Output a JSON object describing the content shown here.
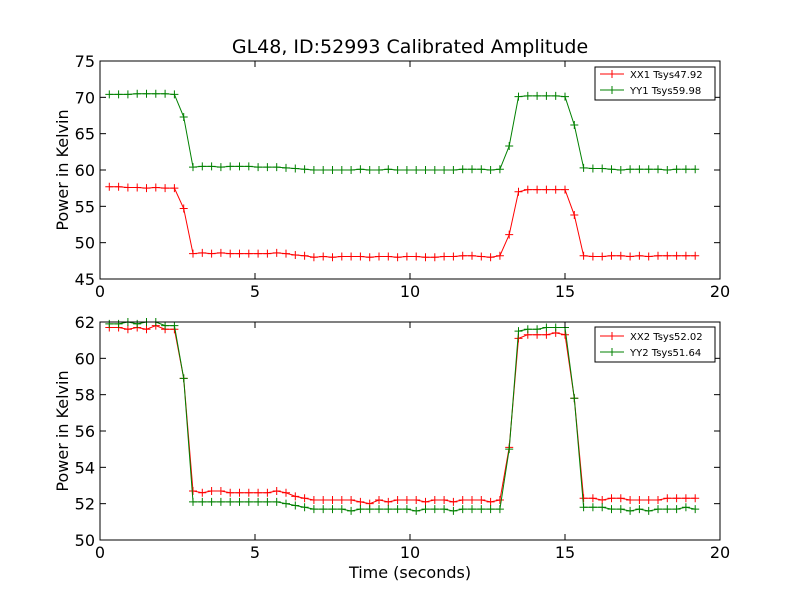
{
  "chart_data": [
    {
      "type": "line",
      "title": "GL48, ID:52993 Calibrated Amplitude",
      "xlabel": "",
      "ylabel": "Power in Kelvin",
      "xlim": [
        0,
        20
      ],
      "ylim": [
        45,
        75
      ],
      "xticks": [
        "0",
        "5",
        "10",
        "15",
        "20"
      ],
      "yticks": [
        "45",
        "50",
        "55",
        "60",
        "65",
        "70",
        "75"
      ],
      "grid": false,
      "legend_position": "top-right",
      "x": [
        0.3,
        0.6,
        0.9,
        1.2,
        1.5,
        1.8,
        2.1,
        2.4,
        2.7,
        3.0,
        3.3,
        3.6,
        3.9,
        4.2,
        4.5,
        4.8,
        5.1,
        5.4,
        5.7,
        6.0,
        6.3,
        6.6,
        6.9,
        7.2,
        7.5,
        7.8,
        8.1,
        8.4,
        8.7,
        9.0,
        9.3,
        9.6,
        9.9,
        10.2,
        10.5,
        10.8,
        11.1,
        11.4,
        11.7,
        12.0,
        12.3,
        12.6,
        12.9,
        13.2,
        13.5,
        13.8,
        14.1,
        14.4,
        14.7,
        15.0,
        15.3,
        15.6,
        15.9,
        16.2,
        16.5,
        16.8,
        17.1,
        17.4,
        17.7,
        18.0,
        18.3,
        18.6,
        18.9,
        19.2
      ],
      "series": [
        {
          "name": "XX1 Tsys47.92",
          "color": "#ff0000",
          "values": [
            57.7,
            57.7,
            57.6,
            57.6,
            57.5,
            57.6,
            57.5,
            57.5,
            54.7,
            48.5,
            48.6,
            48.5,
            48.6,
            48.5,
            48.5,
            48.5,
            48.5,
            48.5,
            48.6,
            48.5,
            48.3,
            48.2,
            48.0,
            48.1,
            48.0,
            48.1,
            48.1,
            48.1,
            48.0,
            48.1,
            48.1,
            48.0,
            48.1,
            48.1,
            48.0,
            48.0,
            48.1,
            48.1,
            48.2,
            48.2,
            48.1,
            48.0,
            48.2,
            51.1,
            57.0,
            57.3,
            57.3,
            57.3,
            57.3,
            57.3,
            53.8,
            48.2,
            48.1,
            48.1,
            48.2,
            48.2,
            48.1,
            48.2,
            48.1,
            48.2,
            48.2,
            48.2,
            48.2,
            48.2
          ]
        },
        {
          "name": "YY1 Tsys59.98",
          "color": "#008000",
          "values": [
            70.4,
            70.4,
            70.4,
            70.5,
            70.5,
            70.5,
            70.5,
            70.4,
            67.3,
            60.4,
            60.5,
            60.5,
            60.4,
            60.5,
            60.5,
            60.5,
            60.4,
            60.4,
            60.4,
            60.3,
            60.2,
            60.1,
            60.0,
            60.0,
            60.0,
            60.0,
            60.0,
            60.1,
            60.0,
            60.0,
            60.1,
            60.0,
            60.0,
            60.0,
            60.0,
            60.0,
            60.0,
            60.0,
            60.1,
            60.1,
            60.1,
            60.0,
            60.1,
            63.3,
            70.1,
            70.2,
            70.2,
            70.2,
            70.2,
            70.1,
            66.2,
            60.3,
            60.2,
            60.2,
            60.1,
            60.0,
            60.1,
            60.1,
            60.1,
            60.1,
            60.0,
            60.1,
            60.1,
            60.1
          ]
        }
      ]
    },
    {
      "type": "line",
      "title": "",
      "xlabel": "Time (seconds)",
      "ylabel": "Power in Kelvin",
      "xlim": [
        0,
        20
      ],
      "ylim": [
        50,
        62
      ],
      "xticks": [
        "0",
        "5",
        "10",
        "15",
        "20"
      ],
      "yticks": [
        "50",
        "52",
        "54",
        "56",
        "58",
        "60",
        "62"
      ],
      "grid": false,
      "legend_position": "top-right",
      "x": [
        0.3,
        0.6,
        0.9,
        1.2,
        1.5,
        1.8,
        2.1,
        2.4,
        2.7,
        3.0,
        3.3,
        3.6,
        3.9,
        4.2,
        4.5,
        4.8,
        5.1,
        5.4,
        5.7,
        6.0,
        6.3,
        6.6,
        6.9,
        7.2,
        7.5,
        7.8,
        8.1,
        8.4,
        8.7,
        9.0,
        9.3,
        9.6,
        9.9,
        10.2,
        10.5,
        10.8,
        11.1,
        11.4,
        11.7,
        12.0,
        12.3,
        12.6,
        12.9,
        13.2,
        13.5,
        13.8,
        14.1,
        14.4,
        14.7,
        15.0,
        15.3,
        15.6,
        15.9,
        16.2,
        16.5,
        16.8,
        17.1,
        17.4,
        17.7,
        18.0,
        18.3,
        18.6,
        18.9,
        19.2
      ],
      "series": [
        {
          "name": "XX2 Tsys52.02",
          "color": "#ff0000",
          "values": [
            61.7,
            61.7,
            61.6,
            61.7,
            61.6,
            61.8,
            61.6,
            61.6,
            58.9,
            52.7,
            52.6,
            52.7,
            52.7,
            52.6,
            52.6,
            52.6,
            52.6,
            52.6,
            52.7,
            52.6,
            52.4,
            52.3,
            52.2,
            52.2,
            52.2,
            52.2,
            52.2,
            52.1,
            52.0,
            52.2,
            52.1,
            52.2,
            52.2,
            52.2,
            52.1,
            52.2,
            52.2,
            52.1,
            52.2,
            52.2,
            52.2,
            52.1,
            52.2,
            55.1,
            61.1,
            61.3,
            61.3,
            61.3,
            61.4,
            61.3,
            57.8,
            52.3,
            52.3,
            52.2,
            52.3,
            52.3,
            52.2,
            52.2,
            52.2,
            52.2,
            52.3,
            52.3,
            52.3,
            52.3
          ]
        },
        {
          "name": "YY2 Tsys51.64",
          "color": "#008000",
          "values": [
            61.9,
            61.9,
            62.0,
            61.9,
            62.0,
            62.0,
            61.8,
            61.8,
            58.9,
            52.1,
            52.1,
            52.1,
            52.1,
            52.1,
            52.1,
            52.1,
            52.1,
            52.1,
            52.1,
            52.0,
            51.9,
            51.8,
            51.7,
            51.7,
            51.7,
            51.7,
            51.6,
            51.7,
            51.7,
            51.7,
            51.7,
            51.7,
            51.7,
            51.6,
            51.7,
            51.7,
            51.7,
            51.6,
            51.7,
            51.7,
            51.7,
            51.7,
            51.7,
            55.0,
            61.5,
            61.6,
            61.6,
            61.7,
            61.7,
            61.7,
            57.8,
            51.8,
            51.8,
            51.8,
            51.7,
            51.7,
            51.6,
            51.7,
            51.6,
            51.7,
            51.7,
            51.7,
            51.8,
            51.7
          ]
        }
      ]
    }
  ]
}
